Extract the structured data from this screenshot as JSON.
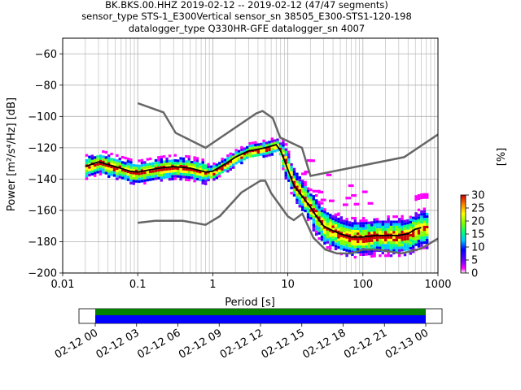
{
  "title_lines": [
    "BK.BKS.00.HHZ   2019-02-12 -- 2019-02-12  (47/47 segments)",
    "sensor_type STS-1_E300Vertical sensor_sn 38505_E300-STS1-120-198",
    "datalogger_type Q330HR-GFE datalogger_sn 4007"
  ],
  "chart_data": {
    "type": "heatmap",
    "xlabel": "Period [s]",
    "ylabel": "Power [m²/s⁴/Hz] [dB]",
    "xscale": "log",
    "xlim": [
      0.01,
      1000
    ],
    "ylim": [
      -200,
      -50
    ],
    "xticks": [
      {
        "v": 0.01,
        "label": "0.01"
      },
      {
        "v": 0.1,
        "label": "0.1"
      },
      {
        "v": 1,
        "label": "1"
      },
      {
        "v": 10,
        "label": "10"
      },
      {
        "v": 100,
        "label": "100"
      },
      {
        "v": 1000,
        "label": "1000"
      }
    ],
    "yticks": [
      {
        "v": -60,
        "label": "−60"
      },
      {
        "v": -80,
        "label": "−80"
      },
      {
        "v": -100,
        "label": "−100"
      },
      {
        "v": -120,
        "label": "−120"
      },
      {
        "v": -140,
        "label": "−140"
      },
      {
        "v": -160,
        "label": "−160"
      },
      {
        "v": -180,
        "label": "−180"
      },
      {
        "v": -200,
        "label": "−200"
      }
    ],
    "grid": true,
    "nhnm": {
      "x": [
        0.1,
        0.22,
        0.32,
        0.8,
        3.8,
        4.6,
        6.3,
        7.9,
        15.4,
        20,
        354.8,
        1000
      ],
      "y": [
        -91.5,
        -97.4,
        -110.5,
        -120,
        -98,
        -96.5,
        -101,
        -113.5,
        -120,
        -138,
        -126,
        -111.5
      ]
    },
    "nlnm": {
      "x": [
        0.1,
        0.17,
        0.4,
        0.8,
        1.24,
        2.4,
        4.3,
        5,
        6,
        10,
        12,
        15.6,
        21.9,
        31.6,
        45,
        70,
        101,
        154,
        328,
        600,
        1000
      ],
      "y": [
        -168,
        -166.7,
        -166.7,
        -169.2,
        -163.7,
        -148.6,
        -141.1,
        -141.1,
        -149,
        -163.8,
        -166.2,
        -162.1,
        -177.5,
        -185,
        -187.5,
        -187.5,
        -185,
        -185,
        -187.5,
        -184.4,
        -178
      ]
    },
    "mode_curve": {
      "x": [
        0.02,
        0.03,
        0.05,
        0.08,
        0.1,
        0.15,
        0.2,
        0.3,
        0.5,
        0.8,
        1,
        1.5,
        2,
        3,
        4,
        5,
        6,
        7,
        8,
        9,
        10,
        12,
        15,
        20,
        25,
        30,
        40,
        50,
        70,
        100,
        150,
        200,
        300,
        400,
        500,
        600
      ],
      "y": [
        -132,
        -129,
        -132,
        -135,
        -135.5,
        -134,
        -133,
        -132,
        -133,
        -135.5,
        -135,
        -130,
        -126,
        -122,
        -121,
        -120,
        -119,
        -118,
        -122,
        -128,
        -134,
        -144,
        -150,
        -158,
        -165,
        -170,
        -173,
        -175,
        -177,
        -177,
        -176,
        -176,
        -176,
        -175,
        -172,
        -171
      ]
    },
    "colorbar": {
      "label": "[%]",
      "min": 0,
      "max": 30,
      "ticks": [
        0,
        5,
        10,
        15,
        20,
        25,
        30
      ]
    },
    "time_axis": {
      "ticks": [
        "02-12 00",
        "02-12 03",
        "02-12 06",
        "02-12 09",
        "02-12 12",
        "02-12 15",
        "02-12 18",
        "02-12 21",
        "02-13 00"
      ],
      "coverage_start_hour": 0,
      "coverage_end_hour": 24,
      "coverage_colors": [
        "#008000",
        "#0000ff"
      ]
    }
  }
}
